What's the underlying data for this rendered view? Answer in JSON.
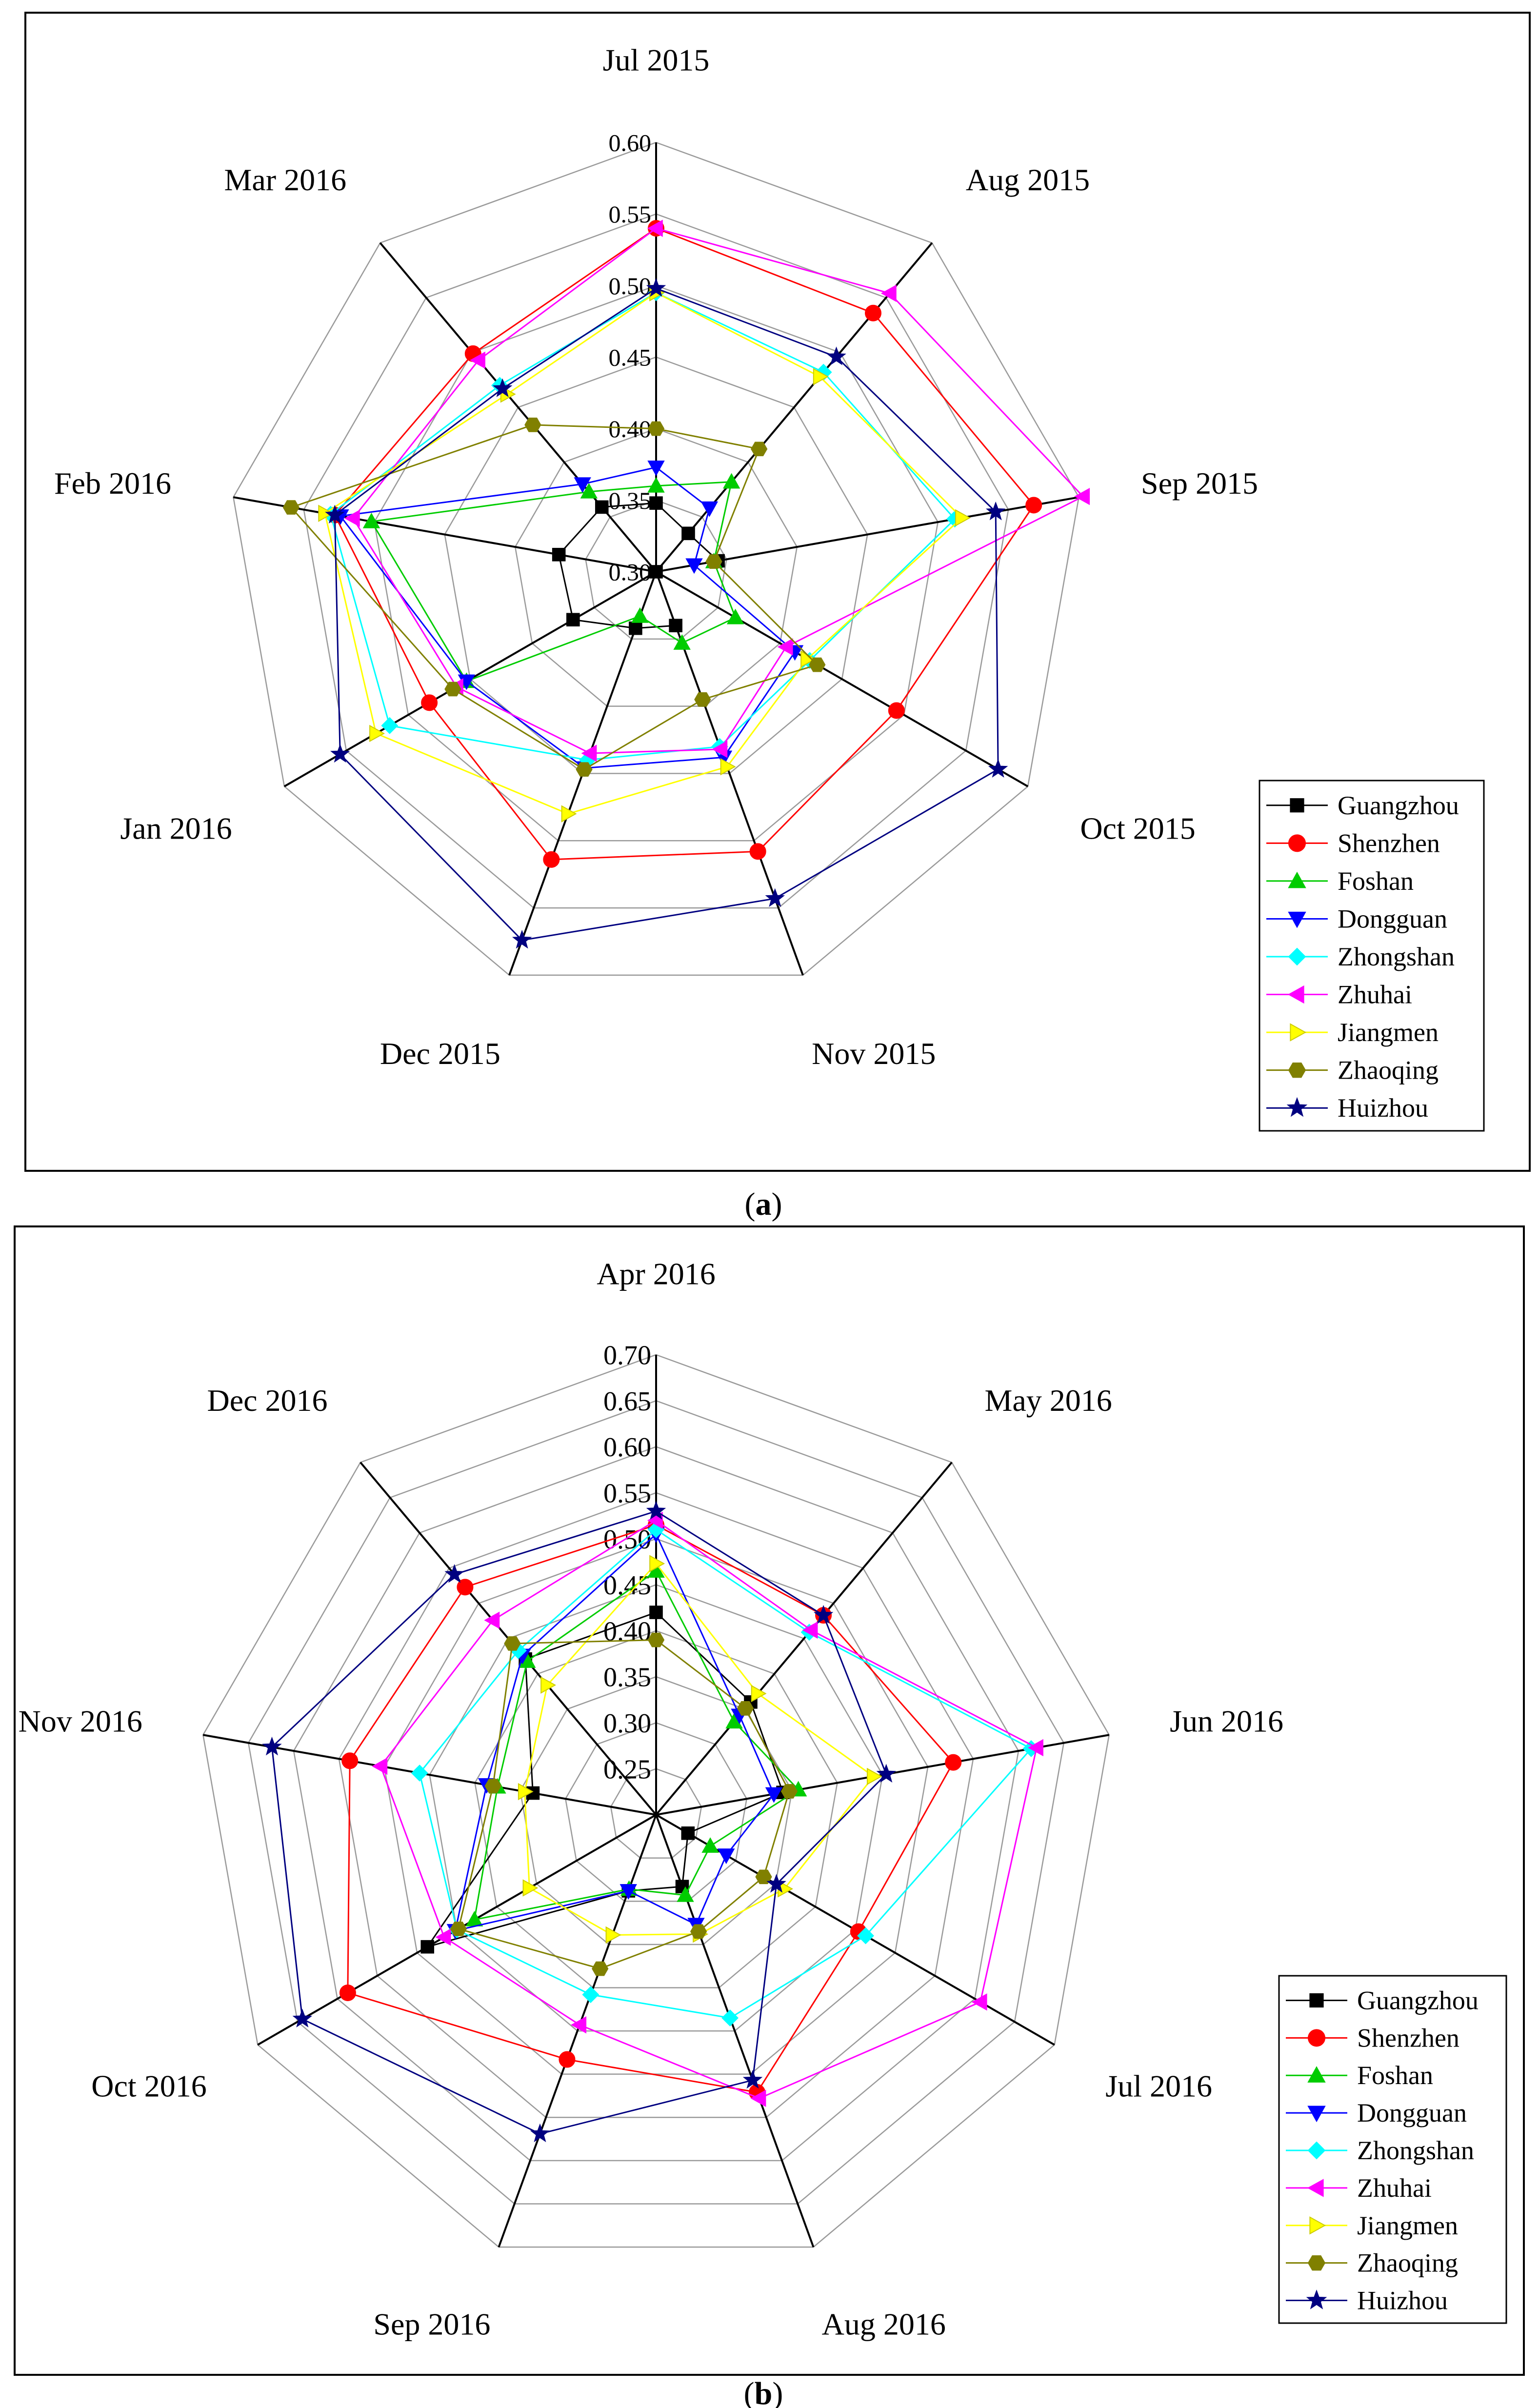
{
  "colors": {
    "Guangzhou": "#000000",
    "Shenzhen": "#ff0000",
    "Foshan": "#00cc00",
    "Dongguan": "#0000ff",
    "Zhongshan": "#00ffff",
    "Zhuhai": "#ff00ff",
    "Jiangmen": "#ffff00",
    "Zhaoqing": "#808000",
    "Huizhou": "#000080"
  },
  "markers": {
    "Guangzhou": "square",
    "Shenzhen": "circle",
    "Foshan": "triangle-up",
    "Dongguan": "triangle-down",
    "Zhongshan": "diamond",
    "Zhuhai": "triangle-left",
    "Jiangmen": "triangle-right",
    "Zhaoqing": "hexagon",
    "Huizhou": "star"
  },
  "chart_data": [
    {
      "type": "radar",
      "panel_label": "a",
      "categories": [
        "Jul 2015",
        "Aug 2015",
        "Sep 2015",
        "Oct 2015",
        "Nov 2015",
        "Dec 2015",
        "Jan 2016",
        "Feb 2016",
        "Mar 2016"
      ],
      "ticks": [
        "0.30",
        "0.35",
        "0.40",
        "0.45",
        "0.50",
        "0.55",
        "0.60"
      ],
      "rmin": 0.3,
      "rmax": 0.6,
      "legend_position": "bottom-right",
      "series": [
        {
          "name": "Guangzhou",
          "values": [
            0.348,
            0.335,
            0.344,
            0.3,
            0.34,
            0.342,
            0.367,
            0.369,
            0.359
          ]
        },
        {
          "name": "Shenzhen",
          "values": [
            0.54,
            0.536,
            0.568,
            0.494,
            0.508,
            0.514,
            0.483,
            0.528,
            0.499
          ]
        },
        {
          "name": "Foshan",
          "values": [
            0.36,
            0.382,
            0.341,
            0.364,
            0.353,
            0.333,
            0.453,
            0.502,
            0.373
          ]
        },
        {
          "name": "Dongguan",
          "values": [
            0.373,
            0.358,
            0.327,
            0.412,
            0.438,
            0.446,
            0.453,
            0.524,
            0.38
          ]
        },
        {
          "name": "Zhongshan",
          "values": [
            0.495,
            0.482,
            0.512,
            0.424,
            0.43,
            0.44,
            0.515,
            0.531,
            0.47
          ]
        },
        {
          "name": "Zhuhai",
          "values": [
            0.54,
            0.554,
            0.603,
            0.405,
            0.432,
            0.435,
            0.461,
            0.515,
            0.493
          ]
        },
        {
          "name": "Jiangmen",
          "values": [
            0.495,
            0.478,
            0.517,
            0.422,
            0.445,
            0.48,
            0.526,
            0.535,
            0.462
          ]
        },
        {
          "name": "Zhaoqing",
          "values": [
            0.4,
            0.412,
            0.341,
            0.43,
            0.395,
            0.447,
            0.464,
            0.559,
            0.434
          ]
        },
        {
          "name": "Huizhou",
          "values": [
            0.498,
            0.496,
            0.541,
            0.576,
            0.543,
            0.574,
            0.555,
            0.528,
            0.467
          ]
        }
      ]
    },
    {
      "type": "radar",
      "panel_label": "b",
      "categories": [
        "Apr 2016",
        "May 2016",
        "Jun 2016",
        "Jul 2016",
        "Aug 2016",
        "Sep 2016",
        "Oct 2016",
        "Nov 2016",
        "Dec 2016"
      ],
      "ticks": [
        "0.25",
        "0.30",
        "0.35",
        "0.40",
        "0.45",
        "0.50",
        "0.55",
        "0.60",
        "0.65",
        "0.70"
      ],
      "rmin": 0.2,
      "rmax": 0.7,
      "legend_position": "bottom-right",
      "series": [
        {
          "name": "Guangzhou",
          "values": [
            0.42,
            0.36,
            0.34,
            0.24,
            0.283,
            0.288,
            0.487,
            0.336,
            0.421
          ]
        },
        {
          "name": "Shenzhen",
          "values": [
            0.515,
            0.483,
            0.528,
            0.454,
            0.521,
            0.483,
            0.587,
            0.538,
            0.523
          ]
        },
        {
          "name": "Foshan",
          "values": [
            0.465,
            0.332,
            0.357,
            0.268,
            0.293,
            0.286,
            0.428,
            0.375,
            0.418
          ]
        },
        {
          "name": "Dongguan",
          "values": [
            0.505,
            0.341,
            0.33,
            0.288,
            0.327,
            0.288,
            0.452,
            0.387,
            0.426
          ]
        },
        {
          "name": "Zhongshan",
          "values": [
            0.51,
            0.459,
            0.614,
            0.463,
            0.435,
            0.408,
            0.45,
            0.461,
            0.433
          ]
        },
        {
          "name": "Zhuhai",
          "values": [
            0.52,
            0.462,
            0.62,
            0.607,
            0.528,
            0.443,
            0.466,
            0.504,
            0.476
          ]
        },
        {
          "name": "Jiangmen",
          "values": [
            0.473,
            0.372,
            0.44,
            0.361,
            0.338,
            0.339,
            0.359,
            0.345,
            0.384
          ]
        },
        {
          "name": "Zhaoqing",
          "values": [
            0.39,
            0.351,
            0.347,
            0.335,
            0.335,
            0.378,
            0.448,
            0.38,
            0.443
          ]
        },
        {
          "name": "Huizhou",
          "values": [
            0.53,
            0.483,
            0.454,
            0.351,
            0.507,
            0.569,
            0.644,
            0.624,
            0.541
          ]
        }
      ]
    }
  ]
}
